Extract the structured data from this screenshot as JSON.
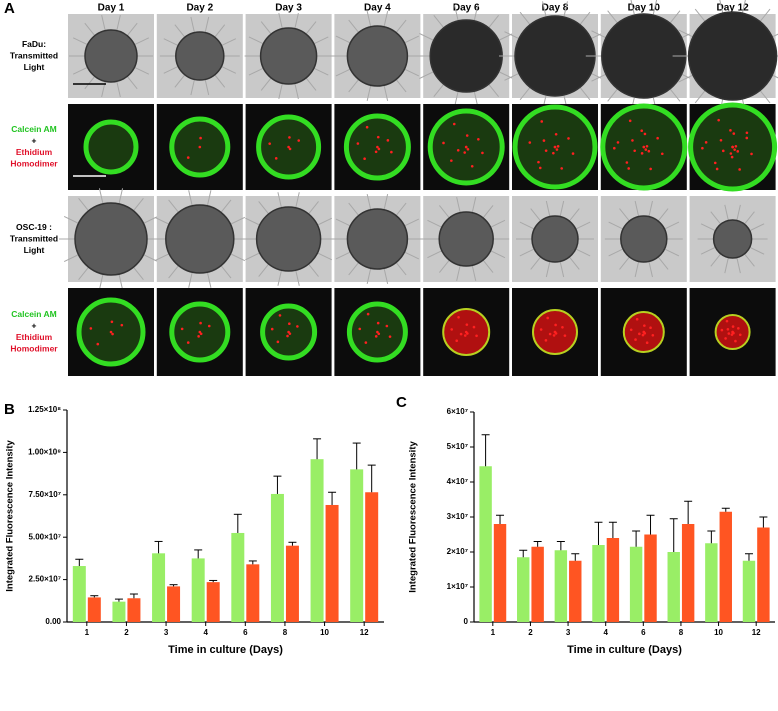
{
  "panel_a": {
    "label": "A",
    "columns": [
      "Day 1",
      "Day 2",
      "Day 3",
      "Day 4",
      "Day 6",
      "Day 8",
      "Day 10",
      "Day 12"
    ],
    "rows": [
      {
        "lines": [
          "FaDu:",
          "Transmitted",
          "Light"
        ]
      },
      {
        "lines": [
          "Calcein AM",
          "+",
          "Ethidium",
          "Homodimer"
        ]
      },
      {
        "lines": [
          "OSC-19 :",
          "Transmitted",
          "Light"
        ]
      },
      {
        "lines": [
          "Calcein AM",
          "+",
          "Ethidium",
          "Homodimer"
        ]
      }
    ]
  },
  "chart_data": [
    {
      "type": "bar",
      "panel_label": "B",
      "x_label": "Time in culture (Days)",
      "y_label": "Integrated Fluorescence Intensity",
      "categories": [
        "1",
        "2",
        "3",
        "4",
        "6",
        "8",
        "10",
        "12"
      ],
      "series": [
        {
          "color": "#99ee66",
          "values": [
            33000000,
            12000000,
            40500000,
            37500000,
            52500000,
            75500000,
            96000000,
            90000000
          ],
          "errors": [
            4000000,
            1500000,
            7000000,
            5000000,
            11000000,
            10500000,
            12000000,
            15500000
          ]
        },
        {
          "color": "#ff5522",
          "values": [
            14500000,
            14000000,
            21000000,
            23500000,
            34000000,
            45000000,
            69000000,
            76500000
          ],
          "errors": [
            1000000,
            2500000,
            1000000,
            1000000,
            2000000,
            2000000,
            7500000,
            16000000
          ]
        }
      ],
      "ylim": [
        0,
        125000000
      ],
      "yticks": [
        {
          "value": 0,
          "label": "0.00"
        },
        {
          "value": 25000000,
          "label": "2.50×10⁷"
        },
        {
          "value": 50000000,
          "label": "5.00×10⁷"
        },
        {
          "value": 75000000,
          "label": "7.50×10⁷"
        },
        {
          "value": 100000000,
          "label": "1.00×10⁸"
        },
        {
          "value": 125000000,
          "label": "1.25×10⁸"
        }
      ]
    },
    {
      "type": "bar",
      "panel_label": "C",
      "x_label": "Time in culture (Days)",
      "y_label": "Integrated Fluorescence Intensity",
      "categories": [
        "1",
        "2",
        "3",
        "4",
        "6",
        "8",
        "10",
        "12"
      ],
      "series": [
        {
          "color": "#99ee66",
          "values": [
            44500000,
            18500000,
            20500000,
            22000000,
            21500000,
            20000000,
            22500000,
            17500000
          ],
          "errors": [
            9000000,
            2000000,
            2500000,
            6500000,
            4500000,
            9500000,
            3500000,
            2000000
          ]
        },
        {
          "color": "#ff5522",
          "values": [
            28000000,
            21500000,
            17500000,
            24000000,
            25000000,
            28000000,
            31500000,
            27000000
          ],
          "errors": [
            2500000,
            1500000,
            2000000,
            4500000,
            5500000,
            6500000,
            1000000,
            3000000
          ]
        }
      ],
      "ylim": [
        0,
        60000000
      ],
      "yticks": [
        0,
        {
          "value": 10000000,
          "label": "1×10⁷"
        },
        {
          "value": 20000000,
          "label": "2×10⁷"
        },
        {
          "value": 30000000,
          "label": "3×10⁷"
        },
        {
          "value": 40000000,
          "label": "4×10⁷"
        },
        {
          "value": 50000000,
          "label": "5×10⁷"
        },
        {
          "value": 60000000,
          "label": "6×10⁷"
        }
      ]
    }
  ]
}
